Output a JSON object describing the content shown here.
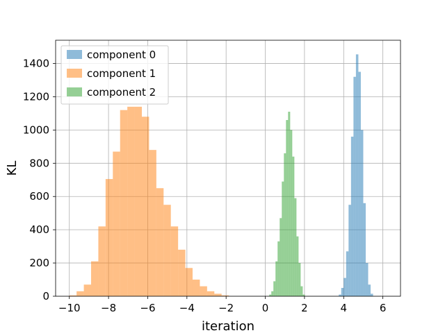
{
  "chart_data": {
    "type": "bar",
    "title": "",
    "xlabel": "iteration",
    "ylabel": "KL",
    "xlim": [
      -10.7,
      6.9
    ],
    "ylim": [
      0,
      1540
    ],
    "grid": true,
    "legend_position": "top-left",
    "xticks": [
      -10,
      -8,
      -6,
      -4,
      -2,
      0,
      2,
      4,
      6
    ],
    "xtick_labels": [
      "−10",
      "−8",
      "−6",
      "−4",
      "−2",
      "0",
      "2",
      "4",
      "6"
    ],
    "yticks": [
      0,
      200,
      400,
      600,
      800,
      1000,
      1200,
      1400
    ],
    "ytick_labels": [
      "0",
      "200",
      "400",
      "600",
      "800",
      "1000",
      "1200",
      "1400"
    ],
    "series": [
      {
        "name": "component 0",
        "color": "#1f77b4",
        "alpha": 0.5,
        "bin_start": 3.75,
        "bin_width": 0.125,
        "values": [
          10,
          50,
          110,
          270,
          550,
          960,
          1320,
          1455,
          1350,
          1000,
          560,
          200,
          70,
          15
        ]
      },
      {
        "name": "component 1",
        "color": "#ff7f0e",
        "alpha": 0.5,
        "bin_start": -10.0,
        "bin_width": 0.37,
        "values": [
          5,
          30,
          70,
          210,
          420,
          705,
          870,
          1120,
          1140,
          1140,
          1080,
          880,
          650,
          550,
          420,
          280,
          170,
          100,
          60,
          30,
          15,
          5
        ]
      },
      {
        "name": "component 2",
        "color": "#2ca02c",
        "alpha": 0.5,
        "bin_start": 0.2,
        "bin_width": 0.107,
        "values": [
          10,
          30,
          90,
          210,
          330,
          470,
          690,
          860,
          1060,
          1110,
          1000,
          840,
          590,
          360,
          200,
          60,
          10
        ]
      }
    ]
  }
}
